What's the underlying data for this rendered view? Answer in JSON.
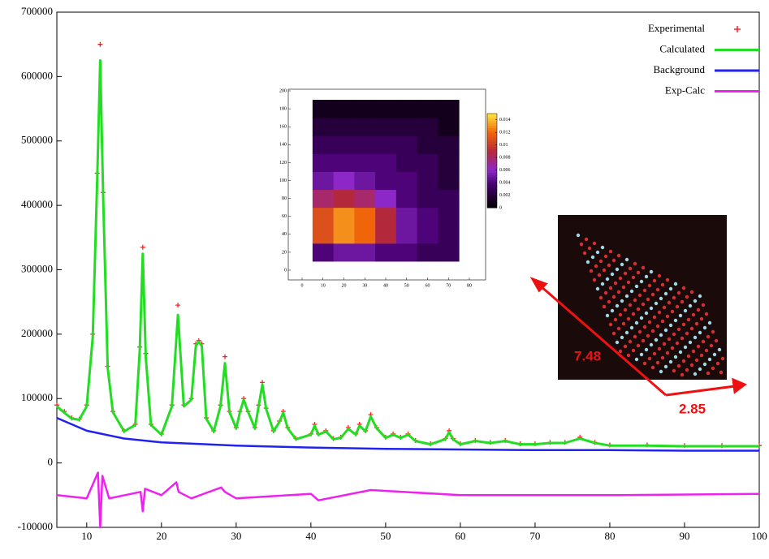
{
  "chart_data": [
    {
      "type": "line",
      "x": [
        6,
        7,
        8,
        9,
        10,
        10.8,
        11.4,
        11.8,
        12.2,
        12.8,
        13.5,
        15,
        16.5,
        17.1,
        17.5,
        17.9,
        18.6,
        20,
        21.4,
        22.2,
        23,
        24,
        24.6,
        25,
        25.4,
        26,
        27,
        27.9,
        28.5,
        29.1,
        30,
        30.5,
        31,
        31.6,
        32.5,
        33,
        33.5,
        34,
        35,
        35.8,
        36.3,
        36.9,
        38,
        40,
        40.5,
        41,
        42,
        43,
        44,
        45,
        46,
        46.5,
        47.3,
        48,
        48.8,
        50,
        51,
        52,
        53,
        54,
        56,
        58,
        58.5,
        59,
        60,
        62,
        64,
        66,
        68,
        70,
        72,
        74,
        76,
        78,
        80,
        85,
        90,
        95,
        100
      ],
      "series": [
        {
          "name": "Experimental",
          "color": "#ff2020",
          "marker": "plus",
          "values": [
            90000,
            80000,
            70000,
            68000,
            90000,
            200000,
            450000,
            650000,
            420000,
            150000,
            80000,
            50000,
            60000,
            180000,
            335000,
            170000,
            60000,
            45000,
            90000,
            245000,
            90000,
            100000,
            185000,
            190000,
            185000,
            70000,
            50000,
            90000,
            165000,
            80000,
            55000,
            80000,
            100000,
            80000,
            55000,
            90000,
            125000,
            85000,
            50000,
            65000,
            80000,
            55000,
            38000,
            45000,
            60000,
            45000,
            50000,
            38000,
            40000,
            55000,
            45000,
            60000,
            50000,
            75000,
            55000,
            40000,
            45000,
            40000,
            45000,
            35000,
            30000,
            38000,
            50000,
            38000,
            30000,
            35000,
            32000,
            35000,
            30000,
            30000,
            32000,
            32000,
            40000,
            32000,
            28000,
            28000,
            27000,
            27000,
            27000
          ]
        },
        {
          "name": "Calculated",
          "color": "#22dd22",
          "values": [
            88000,
            78000,
            69000,
            67000,
            88000,
            195000,
            440000,
            625000,
            410000,
            148000,
            79000,
            49000,
            59000,
            175000,
            325000,
            165000,
            59000,
            44000,
            88000,
            230000,
            88000,
            98000,
            182000,
            188000,
            182000,
            69000,
            49000,
            88000,
            155000,
            79000,
            54000,
            79000,
            98000,
            79000,
            54000,
            88000,
            122000,
            84000,
            49000,
            64000,
            78000,
            54000,
            37000,
            44000,
            58000,
            44000,
            49000,
            37000,
            39000,
            53000,
            44000,
            58000,
            49000,
            72000,
            54000,
            39000,
            44000,
            39000,
            44000,
            34000,
            29000,
            37000,
            48000,
            37000,
            29000,
            34000,
            31000,
            34000,
            29000,
            29000,
            31000,
            31000,
            38000,
            31000,
            27000,
            27000,
            26000,
            26000,
            26000
          ]
        },
        {
          "name": "Background",
          "color": "#2222ee",
          "x": [
            6,
            10,
            15,
            20,
            30,
            40,
            50,
            60,
            70,
            80,
            90,
            100
          ],
          "values": [
            70000,
            50000,
            38000,
            32000,
            27000,
            24000,
            22000,
            21000,
            20000,
            20000,
            19000,
            19000
          ]
        },
        {
          "name": "Exp-Calc",
          "color": "#ee22ee",
          "x": [
            6,
            10,
            11.5,
            11.8,
            12.1,
            13,
            17.2,
            17.5,
            17.8,
            20,
            22,
            22.3,
            24,
            28,
            28.5,
            30,
            40,
            41,
            48,
            60,
            80,
            100
          ],
          "values": [
            -50000,
            -55000,
            -15000,
            -100000,
            -20000,
            -55000,
            -45000,
            -75000,
            -40000,
            -50000,
            -30000,
            -45000,
            -55000,
            -38000,
            -45000,
            -55000,
            -48000,
            -58000,
            -42000,
            -50000,
            -50000,
            -48000
          ]
        }
      ],
      "xlim": [
        6,
        100
      ],
      "xticks": [
        10,
        20,
        30,
        40,
        50,
        60,
        70,
        80,
        90,
        100
      ],
      "ylim": [
        -100000,
        700000
      ],
      "yticks": [
        -100000,
        0,
        100000,
        200000,
        300000,
        400000,
        500000,
        600000,
        700000
      ],
      "legend": "upper right",
      "annotations": [
        "7.48",
        "2.85"
      ]
    },
    {
      "type": "heatmap",
      "x": [
        10,
        20,
        30,
        40,
        50,
        60,
        70
      ],
      "y": [
        20,
        40,
        60,
        80,
        100,
        120,
        140,
        160,
        180
      ],
      "z": [
        [
          0.004,
          0.005,
          0.005,
          0.004,
          0.004,
          0.003,
          0.003
        ],
        [
          0.011,
          0.013,
          0.012,
          0.009,
          0.005,
          0.004,
          0.003
        ],
        [
          0.011,
          0.013,
          0.012,
          0.009,
          0.005,
          0.004,
          0.003
        ],
        [
          0.008,
          0.009,
          0.008,
          0.006,
          0.004,
          0.003,
          0.003
        ],
        [
          0.005,
          0.006,
          0.005,
          0.004,
          0.004,
          0.003,
          0.002
        ],
        [
          0.004,
          0.004,
          0.004,
          0.004,
          0.003,
          0.003,
          0.002
        ],
        [
          0.003,
          0.003,
          0.003,
          0.003,
          0.003,
          0.002,
          0.002
        ],
        [
          0.002,
          0.002,
          0.002,
          0.002,
          0.002,
          0.002,
          0.001
        ],
        [
          0.001,
          0.001,
          0.001,
          0.001,
          0.001,
          0.001,
          0.001
        ]
      ],
      "xlim": [
        0,
        80
      ],
      "xticks": [
        0,
        10,
        20,
        30,
        40,
        50,
        60,
        70,
        80
      ],
      "ylim": [
        0,
        200
      ],
      "yticks": [
        0,
        20,
        40,
        60,
        80,
        100,
        120,
        140,
        160,
        180,
        200
      ],
      "clim": [
        0,
        0.015
      ],
      "cticks": [
        0,
        0.002,
        0.004,
        0.006,
        0.008,
        0.01,
        0.012,
        0.014
      ]
    }
  ]
}
